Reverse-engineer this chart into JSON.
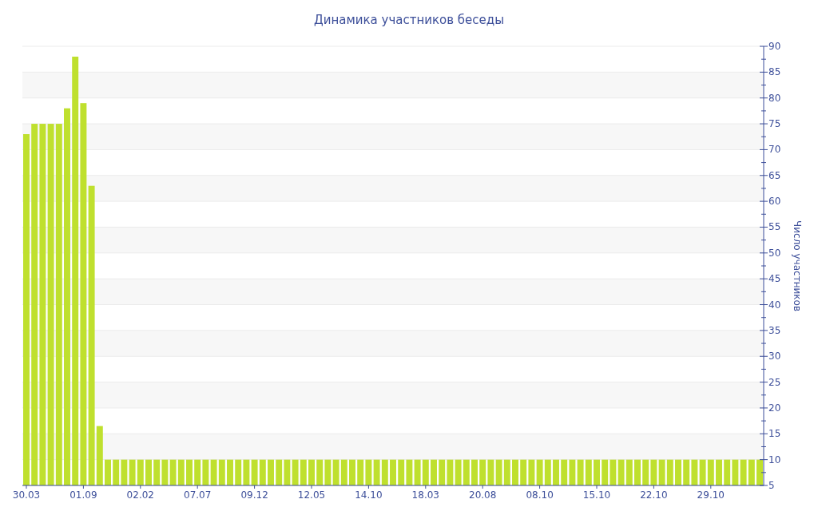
{
  "chart_data": {
    "type": "bar",
    "title": "Динамика участников беседы",
    "ylabel": "Число участников",
    "categories": [
      "30.03",
      null,
      null,
      null,
      null,
      null,
      null,
      "01.09",
      null,
      null,
      null,
      null,
      null,
      null,
      "02.02",
      null,
      null,
      null,
      null,
      null,
      null,
      "07.07",
      null,
      null,
      null,
      null,
      null,
      null,
      "09.12",
      null,
      null,
      null,
      null,
      null,
      null,
      "12.05",
      null,
      null,
      null,
      null,
      null,
      null,
      "14.10",
      null,
      null,
      null,
      null,
      null,
      null,
      "18.03",
      null,
      null,
      null,
      null,
      null,
      null,
      "20.08",
      null,
      null,
      null,
      null,
      null,
      null,
      "08.10",
      null,
      null,
      null,
      null,
      null,
      null,
      "15.10",
      null,
      null,
      null,
      null,
      null,
      null,
      "22.10",
      null,
      null,
      null,
      null,
      null,
      null,
      "29.10",
      null,
      null,
      null,
      null,
      null,
      null
    ],
    "values": [
      73,
      75,
      75,
      75,
      75,
      78,
      88,
      79,
      63,
      16.5,
      10,
      10,
      10,
      10,
      10,
      10,
      10,
      10,
      10,
      10,
      10,
      10,
      10,
      10,
      10,
      10,
      10,
      10,
      10,
      10,
      10,
      10,
      10,
      10,
      10,
      10,
      10,
      10,
      10,
      10,
      10,
      10,
      10,
      10,
      10,
      10,
      10,
      10,
      10,
      10,
      10,
      10,
      10,
      10,
      10,
      10,
      10,
      10,
      10,
      10,
      10,
      10,
      10,
      10,
      10,
      10,
      10,
      10,
      10,
      10,
      10,
      10,
      10,
      10,
      10,
      10,
      10,
      10,
      10,
      10,
      10,
      10,
      10,
      10,
      10,
      10,
      10,
      10,
      10,
      10,
      10
    ],
    "color": "#bfe02e",
    "ylim": [
      5,
      90
    ],
    "yticks": [
      5,
      {
        "value": 7.5,
        "label": null
      },
      10,
      {
        "value": 12.5,
        "label": null
      },
      15,
      {
        "value": 17.5,
        "label": null
      },
      20,
      {
        "value": 22.5,
        "label": null
      },
      25,
      {
        "value": 27.5,
        "label": null
      },
      30,
      {
        "value": 32.5,
        "label": null
      },
      35,
      {
        "value": 37.5,
        "label": null
      },
      40,
      {
        "value": 42.5,
        "label": null
      },
      45,
      {
        "value": 47.5,
        "label": null
      },
      50,
      {
        "value": 52.5,
        "label": null
      },
      55,
      {
        "value": 57.5,
        "label": null
      },
      60,
      {
        "value": 62.5,
        "label": null
      },
      65,
      {
        "value": 67.5,
        "label": null
      },
      70,
      {
        "value": 72.5,
        "label": null
      },
      75,
      {
        "value": 77.5,
        "label": null
      },
      80,
      {
        "value": 82.5,
        "label": null
      },
      85,
      {
        "value": 87.5,
        "label": null
      },
      90
    ],
    "grid": "y"
  }
}
